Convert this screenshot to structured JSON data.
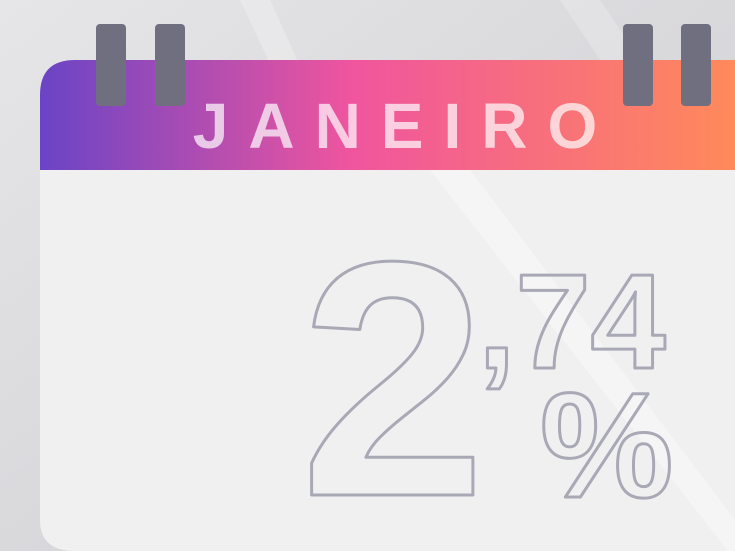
{
  "month": "JANEIRO",
  "rate": {
    "integer": "2",
    "decimal": ",74",
    "unit": "%"
  }
}
